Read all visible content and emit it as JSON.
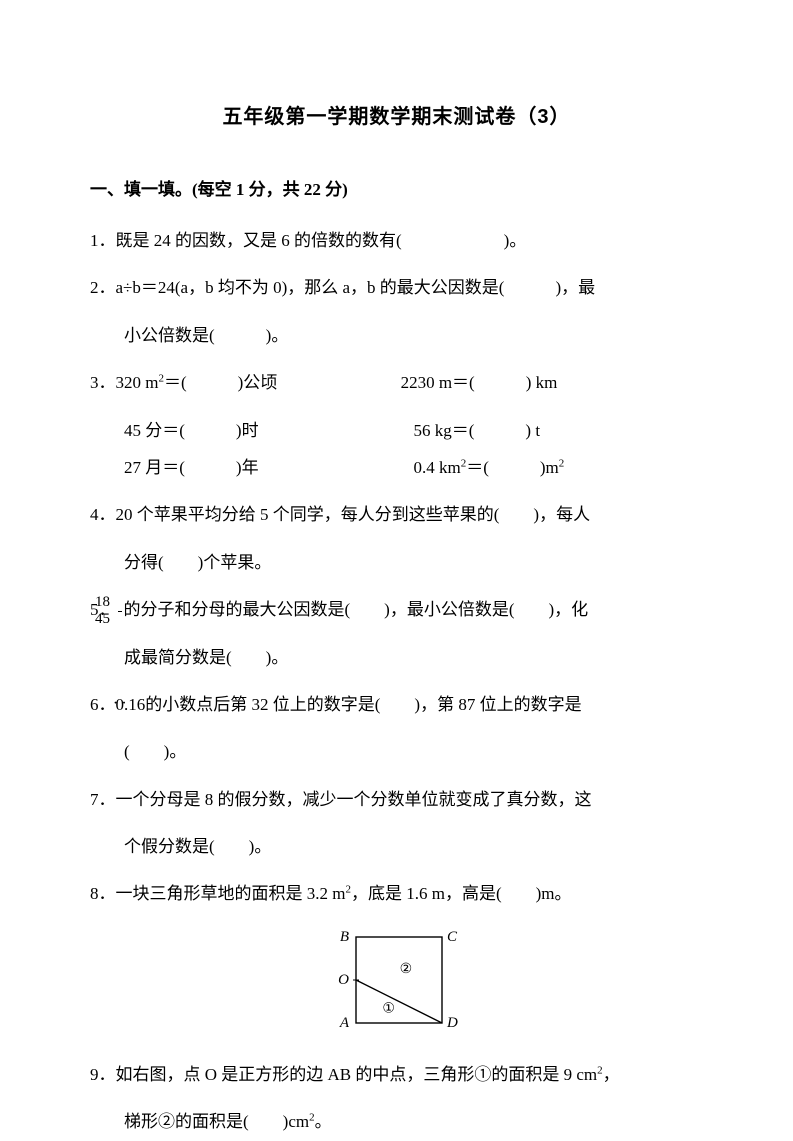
{
  "title": "五年级第一学期数学期末测试卷（3）",
  "section1": {
    "header": "一、填一填。(每空 1 分，共 22 分)"
  },
  "q1": {
    "text": "1．既是 24 的因数，又是 6 的倍数的数有(　　　　　　)。"
  },
  "q2": {
    "line1": "2．a÷b＝24(a，b 均不为 0)，那么 a，b 的最大公因数是(　　　)，最",
    "line2": "小公倍数是(　　　)。"
  },
  "q3": {
    "lead": "3．",
    "r1c1_pre": "320 m",
    "r1c1_sup": "2",
    "r1c1_post": "＝(　　　)公顷",
    "r1c2": "2230 m＝(　　　) km",
    "r2c1": "45 分＝(　　　)时",
    "r2c2": "56 kg＝(　　　) t",
    "r3c1": "27 月＝(　　　)年",
    "r3c2_pre": "0.4 km",
    "r3c2_sup": "2",
    "r3c2_post": "＝(　　　)m",
    "r3c2_sup2": "2"
  },
  "q4": {
    "line1": "4．20 个苹果平均分给 5 个同学，每人分到这些苹果的(　　)，每人",
    "line2": "分得(　　)个苹果。"
  },
  "q5": {
    "lead": "5．",
    "num": "18",
    "den": "45",
    "mid": "的分子和分母的最大公因数是(　　)，最小公倍数是(　　)，化",
    "line2": "成最简分数是(　　)。"
  },
  "q6": {
    "line1_pre": "6．0.",
    "line1_rec1": "1",
    "line1_rec2": "6",
    "line1_post": "的小数点后第 32 位上的数字是(　　)，第 87 位上的数字是",
    "line2": "(　　)。"
  },
  "q7": {
    "line1": "7．一个分母是 8 的假分数，减少一个分数单位就变成了真分数，这",
    "line2": "个假分数是(　　)。"
  },
  "q8": {
    "pre": "8．一块三角形草地的面积是 3.2 m",
    "sup1": "2",
    "mid": "，底是 1.6 m，高是(　　)m。"
  },
  "q9": {
    "line1_pre": "9．如右图，点 O 是正方形的边 AB 的中点，三角形①的面积是 9 cm",
    "line1_sup": "2",
    "line1_post": "，",
    "line2_pre": "梯形②的面积是(　　)cm",
    "line2_sup": "2",
    "line2_post": "。"
  },
  "figure": {
    "size": 112,
    "stroke": "#000000",
    "bg": "#ffffff",
    "labels": {
      "A": "A",
      "B": "B",
      "C": "C",
      "D": "D",
      "O": "O",
      "one": "①",
      "two": "②"
    },
    "font_family": "Times New Roman, SimSun, serif",
    "font_size": 15
  }
}
